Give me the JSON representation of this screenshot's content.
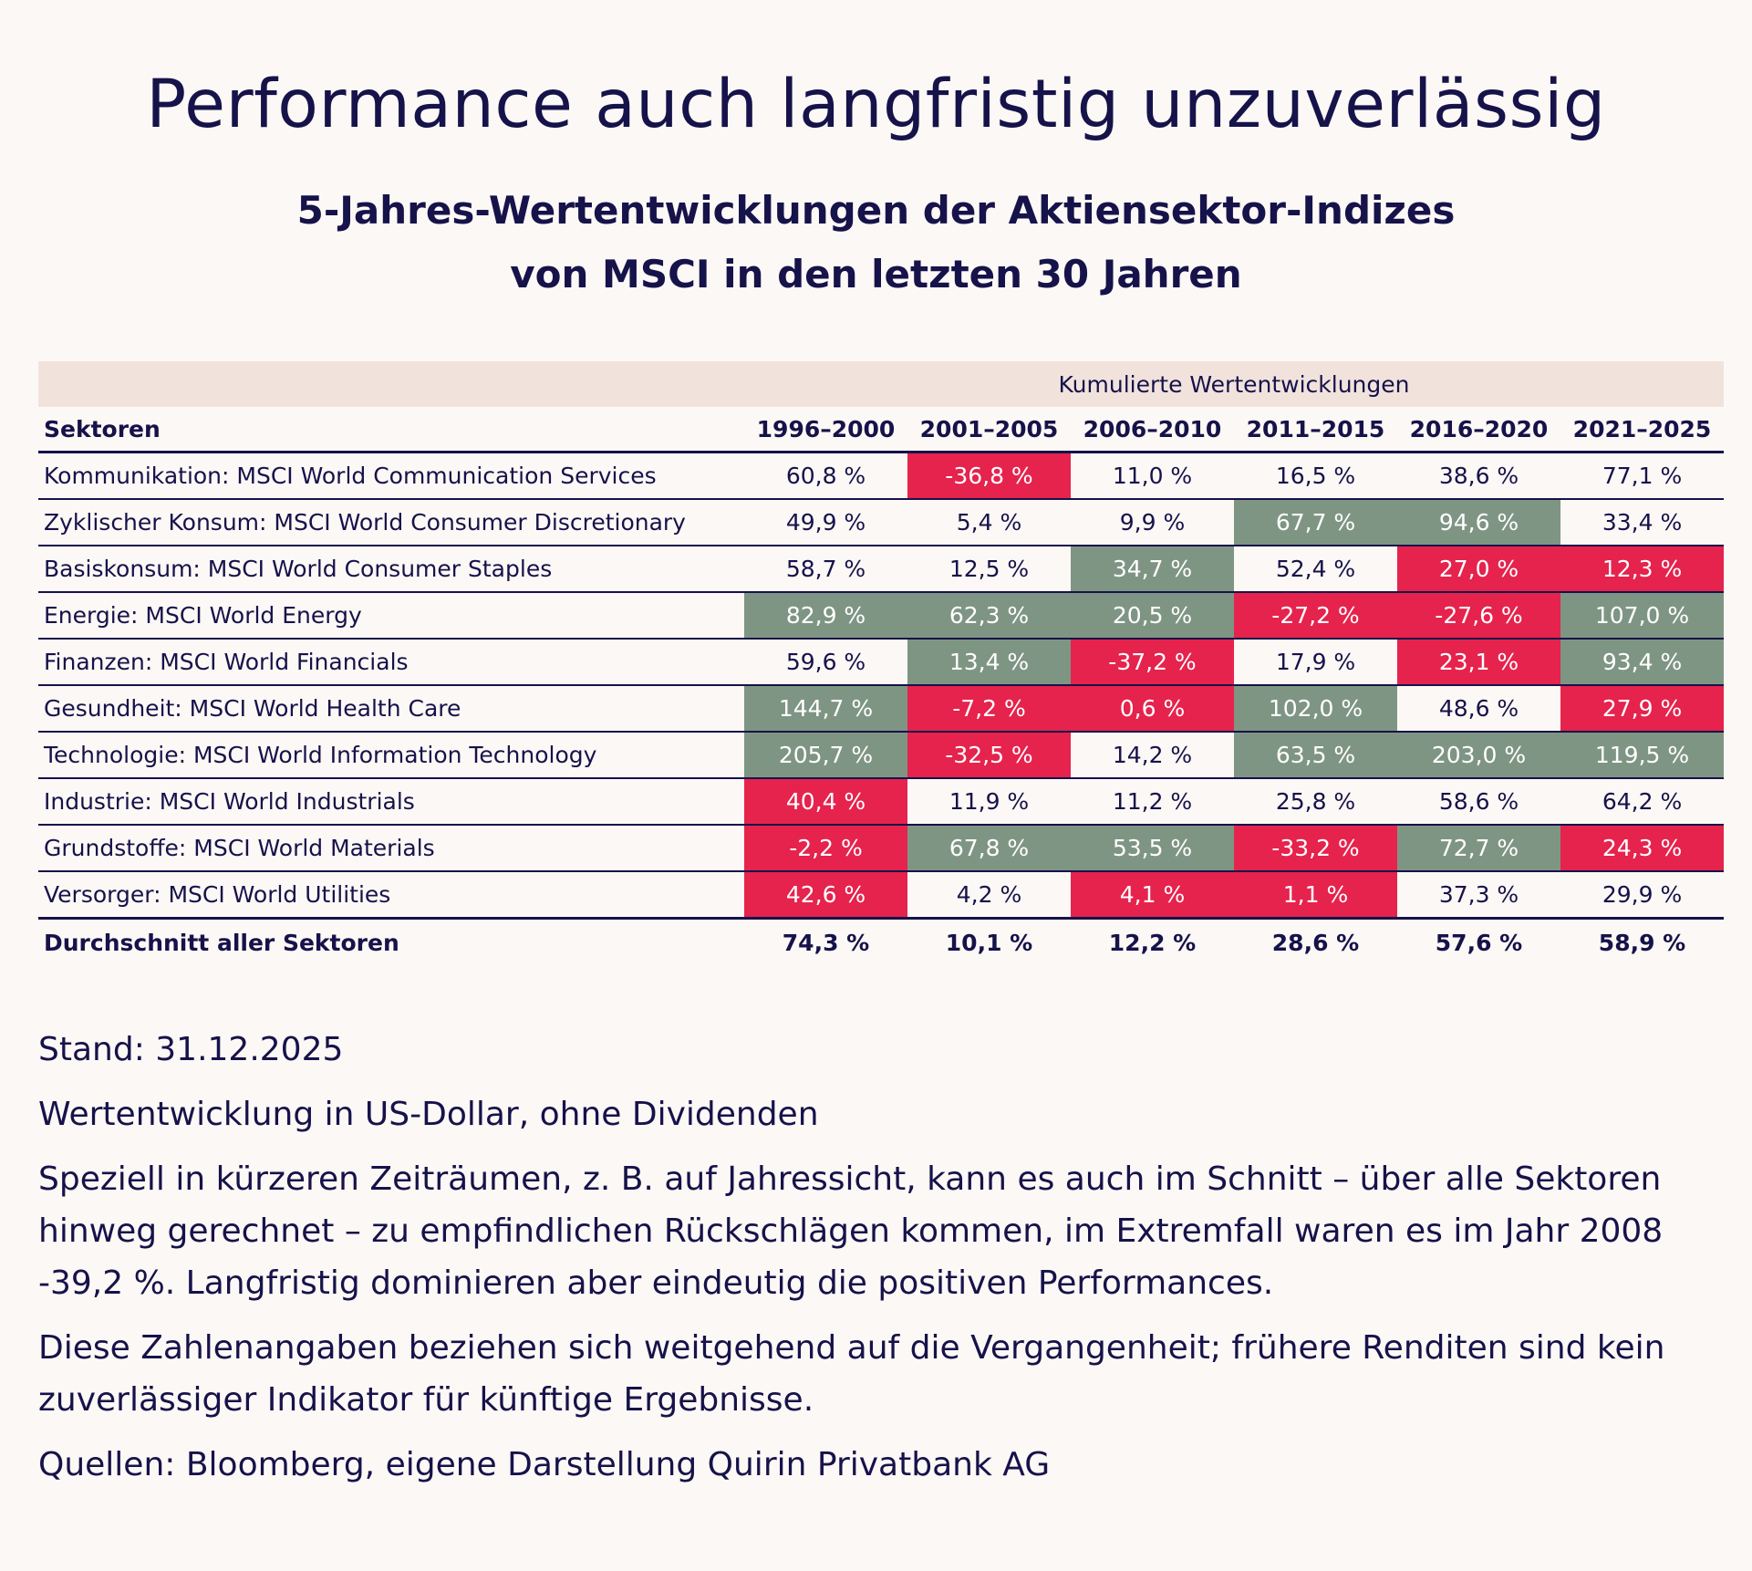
{
  "title": "Performance auch langfristig unzuverlässig",
  "subtitle": {
    "line1": "5-Jahres-Wertentwicklungen der Aktiensektor-Indizes",
    "line2": "von MSCI in den letzten 30 Jahren"
  },
  "table": {
    "band_label": "Kumulierte Wertentwicklungen",
    "sector_header": "Sektoren",
    "periods": [
      "1996–2000",
      "2001–2005",
      "2006–2010",
      "2011–2015",
      "2016–2020",
      "2021–2025"
    ],
    "rows": [
      {
        "sector": "Kommunikation: MSCI World Communication Services",
        "values": [
          "60,8 %",
          "-36,8 %",
          "11,0 %",
          "16,5 %",
          "38,6 %",
          "77,1 %"
        ],
        "highlight": [
          "none",
          "neg",
          "none",
          "none",
          "none",
          "none"
        ]
      },
      {
        "sector": "Zyklischer Konsum: MSCI World Consumer Discretionary",
        "values": [
          "49,9 %",
          "5,4 %",
          "9,9 %",
          "67,7 %",
          "94,6 %",
          "33,4 %"
        ],
        "highlight": [
          "none",
          "none",
          "none",
          "pos",
          "pos",
          "none"
        ]
      },
      {
        "sector": "Basiskonsum: MSCI World Consumer Staples",
        "values": [
          "58,7 %",
          "12,5 %",
          "34,7 %",
          "52,4 %",
          "27,0 %",
          "12,3 %"
        ],
        "highlight": [
          "none",
          "none",
          "pos",
          "none",
          "neg",
          "neg"
        ]
      },
      {
        "sector": "Energie: MSCI World Energy",
        "values": [
          "82,9 %",
          "62,3 %",
          "20,5 %",
          "-27,2 %",
          "-27,6 %",
          "107,0 %"
        ],
        "highlight": [
          "pos",
          "pos",
          "pos",
          "neg",
          "neg",
          "pos"
        ]
      },
      {
        "sector": "Finanzen: MSCI World Financials",
        "values": [
          "59,6 %",
          "13,4 %",
          "-37,2 %",
          "17,9 %",
          "23,1 %",
          "93,4 %"
        ],
        "highlight": [
          "none",
          "pos",
          "neg",
          "none",
          "neg",
          "pos"
        ]
      },
      {
        "sector": "Gesundheit: MSCI World Health Care",
        "values": [
          "144,7 %",
          "-7,2 %",
          "0,6 %",
          "102,0 %",
          "48,6 %",
          "27,9 %"
        ],
        "highlight": [
          "pos",
          "neg",
          "neg",
          "pos",
          "none",
          "neg"
        ]
      },
      {
        "sector": "Technologie: MSCI World Information Technology",
        "values": [
          "205,7 %",
          "-32,5 %",
          "14,2 %",
          "63,5 %",
          "203,0 %",
          "119,5 %"
        ],
        "highlight": [
          "pos",
          "neg",
          "none",
          "pos",
          "pos",
          "pos"
        ]
      },
      {
        "sector": "Industrie: MSCI World Industrials",
        "values": [
          "40,4 %",
          "11,9 %",
          "11,2 %",
          "25,8 %",
          "58,6 %",
          "64,2 %"
        ],
        "highlight": [
          "neg",
          "none",
          "none",
          "none",
          "none",
          "none"
        ]
      },
      {
        "sector": "Grundstoffe: MSCI World Materials",
        "values": [
          "-2,2 %",
          "67,8 %",
          "53,5 %",
          "-33,2 %",
          "72,7 %",
          "24,3 %"
        ],
        "highlight": [
          "neg",
          "pos",
          "pos",
          "neg",
          "pos",
          "neg"
        ]
      },
      {
        "sector": "Versorger: MSCI World Utilities",
        "values": [
          "42,6 %",
          "4,2 %",
          "4,1 %",
          "1,1 %",
          "37,3 %",
          "29,9 %"
        ],
        "highlight": [
          "neg",
          "none",
          "neg",
          "neg",
          "none",
          "none"
        ]
      }
    ],
    "average": {
      "label": "Durchschnitt aller Sektoren",
      "values": [
        "74,3 %",
        "10,1 %",
        "12,2 %",
        "28,6 %",
        "57,6 %",
        "58,9 %"
      ]
    }
  },
  "notes": {
    "stand": "Stand: 31.12.2025",
    "currency": "Wertentwicklung in US-Dollar, ohne Dividenden",
    "remark": "Speziell in kürzeren Zeiträumen, z. B. auf Jahressicht, kann es auch im Schnitt – über alle Sektoren hinweg gerechnet – zu empfindlichen Rückschlägen kommen, im Extremfall waren es im Jahr 2008 -39,2 %. Langfristig dominieren aber eindeutig die positiven Performances.",
    "disclaimer": "Diese Zahlenangaben beziehen sich weitgehend auf die Vergangenheit; frühere Renditen sind kein zuverlässiger Indikator für künftige Ergebnisse.",
    "source": "Quellen: Bloomberg, eigene Darstellung Quirin Privatbank AG"
  },
  "colors": {
    "text": "#16124a",
    "background": "#fcf8f5",
    "band": "#f1e3dc",
    "positive_highlight": "#7f9583",
    "negative_highlight": "#e5234d"
  }
}
